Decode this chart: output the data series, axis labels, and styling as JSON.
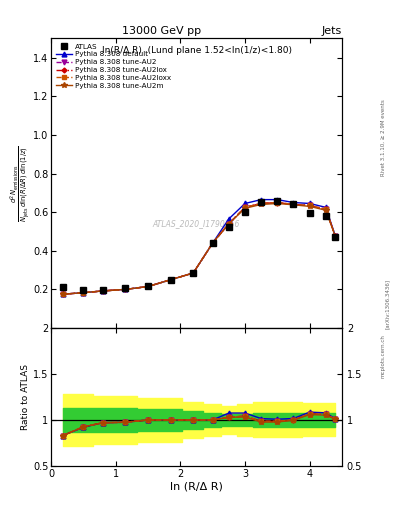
{
  "title_top": "13000 GeV pp",
  "title_right": "Jets",
  "annotation": "ln(R/Δ R)  (Lund plane 1.52<ln(1/z)<1.80)",
  "watermark": "ATLAS_2020_I1790256",
  "rivet_text": "Rivet 3.1.10, ≥ 2.9M events",
  "arxiv_text": "[arXiv:1306.3436]",
  "mcplots_text": "mcplots.cern.ch",
  "xlabel": "ln (R/Δ R)",
  "ylabel_main_line1": "d² N",
  "ylabel_ratio": "Ratio to ATLAS",
  "x_data": [
    0.18,
    0.5,
    0.8,
    1.15,
    1.5,
    1.85,
    2.2,
    2.5,
    2.75,
    3.0,
    3.25,
    3.5,
    3.75,
    4.0,
    4.25,
    4.4
  ],
  "atlas_y": [
    0.21,
    0.198,
    0.198,
    0.205,
    0.215,
    0.25,
    0.285,
    0.44,
    0.525,
    0.6,
    0.655,
    0.66,
    0.64,
    0.595,
    0.58,
    0.47
  ],
  "pythia_default_y": [
    0.175,
    0.183,
    0.192,
    0.2,
    0.215,
    0.25,
    0.285,
    0.44,
    0.565,
    0.645,
    0.665,
    0.665,
    0.65,
    0.645,
    0.625,
    0.475
  ],
  "pythia_au2_y": [
    0.175,
    0.183,
    0.192,
    0.2,
    0.215,
    0.25,
    0.285,
    0.44,
    0.54,
    0.625,
    0.645,
    0.65,
    0.64,
    0.635,
    0.615,
    0.475
  ],
  "pythia_au2lox_y": [
    0.175,
    0.183,
    0.192,
    0.2,
    0.215,
    0.25,
    0.285,
    0.44,
    0.54,
    0.625,
    0.645,
    0.65,
    0.64,
    0.635,
    0.615,
    0.475
  ],
  "pythia_au2loxx_y": [
    0.175,
    0.183,
    0.192,
    0.2,
    0.215,
    0.25,
    0.285,
    0.44,
    0.54,
    0.625,
    0.645,
    0.65,
    0.64,
    0.635,
    0.615,
    0.475
  ],
  "pythia_au2m_y": [
    0.175,
    0.183,
    0.192,
    0.2,
    0.215,
    0.25,
    0.285,
    0.44,
    0.54,
    0.62,
    0.64,
    0.645,
    0.638,
    0.63,
    0.61,
    0.473
  ],
  "ratio_default_y": [
    0.83,
    0.92,
    0.97,
    0.975,
    1.0,
    1.0,
    1.0,
    1.0,
    1.075,
    1.075,
    1.015,
    1.008,
    1.016,
    1.085,
    1.078,
    1.011
  ],
  "ratio_au2_y": [
    0.83,
    0.925,
    0.97,
    0.975,
    1.0,
    1.0,
    1.0,
    1.0,
    1.028,
    1.042,
    0.985,
    0.985,
    1.0,
    1.067,
    1.06,
    1.011
  ],
  "ratio_au2lox_y": [
    0.83,
    0.925,
    0.97,
    0.975,
    1.0,
    1.0,
    1.0,
    1.0,
    1.028,
    1.042,
    0.985,
    0.985,
    1.0,
    1.067,
    1.06,
    1.011
  ],
  "ratio_au2loxx_y": [
    0.83,
    0.925,
    0.97,
    0.975,
    1.0,
    1.0,
    1.0,
    1.0,
    1.028,
    1.042,
    0.985,
    0.985,
    1.0,
    1.067,
    1.06,
    1.011
  ],
  "ratio_au2m_y": [
    0.83,
    0.925,
    0.97,
    0.975,
    1.0,
    1.0,
    1.0,
    1.0,
    1.028,
    1.033,
    0.977,
    0.977,
    0.997,
    1.059,
    1.052,
    1.007
  ],
  "band_green_lo": [
    0.87,
    0.87,
    0.87,
    0.87,
    0.88,
    0.88,
    0.9,
    0.92,
    0.93,
    0.93,
    0.92,
    0.92,
    0.92,
    0.92,
    0.92,
    0.92
  ],
  "band_green_hi": [
    1.13,
    1.13,
    1.13,
    1.13,
    1.12,
    1.12,
    1.1,
    1.08,
    1.07,
    1.07,
    1.08,
    1.08,
    1.08,
    1.08,
    1.08,
    1.08
  ],
  "band_yellow_lo": [
    0.72,
    0.72,
    0.74,
    0.74,
    0.76,
    0.76,
    0.8,
    0.83,
    0.85,
    0.83,
    0.81,
    0.81,
    0.81,
    0.82,
    0.82,
    0.82
  ],
  "band_yellow_hi": [
    1.28,
    1.28,
    1.26,
    1.26,
    1.24,
    1.24,
    1.2,
    1.17,
    1.15,
    1.17,
    1.19,
    1.19,
    1.19,
    1.18,
    1.18,
    1.18
  ],
  "color_default": "#0000cc",
  "color_au2": "#990099",
  "color_au2lox": "#cc0000",
  "color_au2loxx": "#cc5500",
  "color_au2m": "#aa4400",
  "color_green": "#33cc33",
  "color_yellow": "#ffff44",
  "ylim_main": [
    0.0,
    1.5
  ],
  "ylim_ratio": [
    0.5,
    2.0
  ],
  "xlim": [
    0.0,
    4.5
  ],
  "yticks_main": [
    0.2,
    0.4,
    0.6,
    0.8,
    1.0,
    1.2,
    1.4
  ],
  "yticks_ratio": [
    0.5,
    1.0,
    1.5,
    2.0
  ]
}
